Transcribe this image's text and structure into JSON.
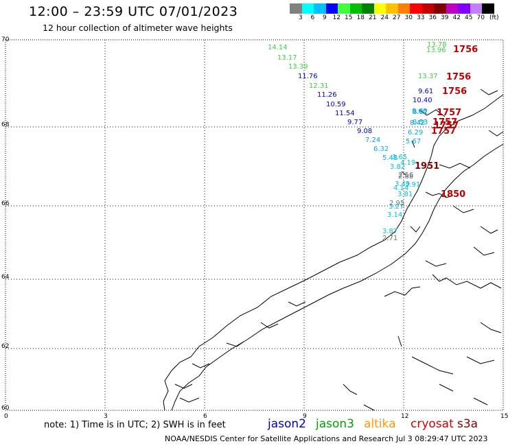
{
  "title": "12:00 – 23:59 UTC 07/01/2023",
  "subtitle": "12 hour collection of altimeter wave heights",
  "colorbar": {
    "unit": "(ft)",
    "colors": [
      "#808080",
      "#00ffff",
      "#00c0ff",
      "#0000ff",
      "#40ff40",
      "#00c000",
      "#008000",
      "#ffff00",
      "#ffc000",
      "#ff8000",
      "#ff0000",
      "#c00000",
      "#800000",
      "#c000c0",
      "#8000ff",
      "#c080ff",
      "#000000"
    ],
    "labels": [
      "3",
      "6",
      "9",
      "12",
      "15",
      "18",
      "21",
      "24",
      "27",
      "30",
      "33",
      "36",
      "39",
      "42",
      "45",
      "70"
    ]
  },
  "axes": {
    "x_ticks": [
      "0",
      "3",
      "6",
      "9",
      "12",
      "15"
    ],
    "y_ticks": [
      "70",
      "68",
      "66",
      "64",
      "62",
      "60"
    ]
  },
  "swh_labels": [
    {
      "t": "14.14",
      "c": "#40d040"
    },
    {
      "t": "13.17",
      "c": "#40d040"
    },
    {
      "t": "13.39",
      "c": "#40d040"
    },
    {
      "t": "11.76",
      "c": "#0000c0"
    },
    {
      "t": "12.31",
      "c": "#40d040"
    },
    {
      "t": "11.26",
      "c": "#0000c0"
    },
    {
      "t": "10.59",
      "c": "#0000c0"
    },
    {
      "t": "11.54",
      "c": "#0000c0"
    },
    {
      "t": "9.77",
      "c": "#0000c0"
    },
    {
      "t": "9.08",
      "c": "#0000c0"
    },
    {
      "t": "7.24",
      "c": "#00a0e0"
    },
    {
      "t": "6.32",
      "c": "#00b0e0"
    },
    {
      "t": "5.48",
      "c": "#00b0e0"
    },
    {
      "t": "3.65",
      "c": "#00c0e0"
    },
    {
      "t": "4.19",
      "c": "#00c0e0"
    },
    {
      "t": "3.82",
      "c": "#00c0e0"
    },
    {
      "t": "2.88",
      "c": "#707070"
    },
    {
      "t": "2.56",
      "c": "#707070"
    },
    {
      "t": "3.49",
      "c": "#00c0e0"
    },
    {
      "t": "3.91",
      "c": "#00c0e0"
    },
    {
      "t": "4.14",
      "c": "#00c0e0"
    },
    {
      "t": "3.81",
      "c": "#00c0e0"
    },
    {
      "t": "2.95",
      "c": "#707070"
    },
    {
      "t": "3.27",
      "c": "#00c0e0"
    },
    {
      "t": "3.14",
      "c": "#00c0e0"
    },
    {
      "t": "3.87",
      "c": "#00c0e0"
    },
    {
      "t": "2.71",
      "c": "#707070"
    },
    {
      "t": "13.78",
      "c": "#40d040"
    },
    {
      "t": "13.96",
      "c": "#40d040"
    },
    {
      "t": "13.37",
      "c": "#40d040"
    },
    {
      "t": "9.61",
      "c": "#0000c0"
    },
    {
      "t": "10.40",
      "c": "#0000c0"
    },
    {
      "t": "8.68",
      "c": "#00a0e0"
    },
    {
      "t": "8.02",
      "c": "#00a0e0"
    },
    {
      "t": "8.42",
      "c": "#00a0e0"
    },
    {
      "t": "8.53",
      "c": "#00a0e0"
    },
    {
      "t": "6.29",
      "c": "#00b0e0"
    },
    {
      "t": "5.67",
      "c": "#00b0e0"
    }
  ],
  "time_labels": [
    {
      "t": "1756",
      "c": "#c00000"
    },
    {
      "t": "1756",
      "c": "#c00000"
    },
    {
      "t": "1756",
      "c": "#c00000"
    },
    {
      "t": "1757",
      "c": "#c00000"
    },
    {
      "t": "1757",
      "c": "#c00000"
    },
    {
      "t": "1757",
      "c": "#c00000"
    },
    {
      "t": "1757",
      "c": "#c00000"
    },
    {
      "t": "1951",
      "c": "#800000"
    },
    {
      "t": "1850",
      "c": "#c00000"
    }
  ],
  "note": "note: 1) Time is in UTC; 2) SWH is in feet",
  "satellites": [
    {
      "name": "jason2",
      "color": "#0000c0"
    },
    {
      "name": "jason3",
      "color": "#00a000"
    },
    {
      "name": "altika",
      "color": "#ff9900"
    },
    {
      "name": "cryosat",
      "color": "#d00000"
    },
    {
      "name": "s3a",
      "color": "#800000"
    }
  ],
  "footer": "NOAA/NESDIS Center for Satellite Applications and Research",
  "timestamp": "Jul  3 08:29:47 UTC 2023"
}
